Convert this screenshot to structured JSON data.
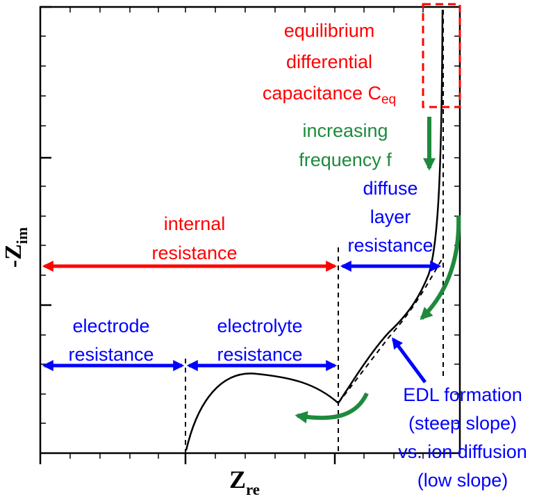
{
  "axes": {
    "x_label_main": "Z",
    "x_label_sub": "re",
    "y_label_main": "-Z",
    "y_label_sub": "im"
  },
  "annotations": {
    "ceq_line1": "equilibrium",
    "ceq_line2": "differential",
    "ceq_line3_main": "capacitance C",
    "ceq_line3_sub": "eq",
    "freq_line1": "increasing",
    "freq_line2": "frequency f",
    "internal_line1": "internal",
    "internal_line2": "resistance",
    "diffuse_line1": "diffuse",
    "diffuse_line2": "layer",
    "diffuse_line3": "resistance",
    "electrode_line1": "electrode",
    "electrode_line2": "resistance",
    "electrolyte_line1": "electrolyte",
    "electrolyte_line2": "resistance",
    "edl_line1": "EDL formation",
    "edl_line2": "(steep slope)",
    "edl_line3": "vs. ion diffusion",
    "edl_line4": "(low slope)"
  },
  "colors": {
    "red": "#ff0000",
    "green": "#1e8a3c",
    "blue": "#0000ff",
    "black": "#000000"
  }
}
